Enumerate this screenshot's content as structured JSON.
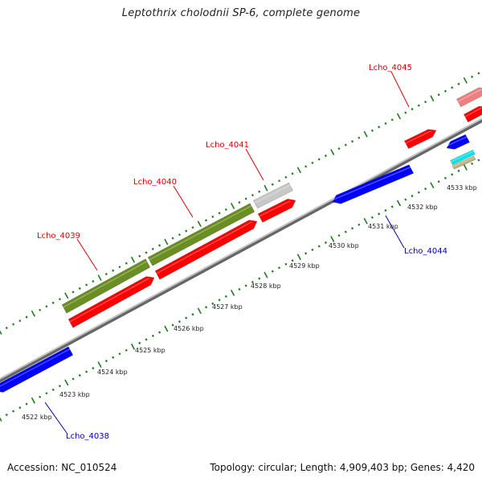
{
  "title": "Leptothrix cholodnii SP-6, complete genome",
  "footer": {
    "accession": "Accession: NC_010524",
    "summary": "Topology: circular; Length: 4,909,403 bp; Genes: 4,420"
  },
  "colors": {
    "forward_cds": "#ff0000",
    "reverse_cds": "#0000ff",
    "rna": "#6b8e23",
    "pseudo": "#c8c8c8",
    "ticks": "#1f7a1f",
    "label_forward": "#dd0000",
    "label_reverse": "#0000aa",
    "backbone": "#888888"
  },
  "scale_labels": [
    "4522 kbp",
    "4523 kbp",
    "4524 kbp",
    "4525 kbp",
    "4526 kbp",
    "4527 kbp",
    "4528 kbp",
    "4529 kbp",
    "4530 kbp",
    "4531 kbp",
    "4532 kbp",
    "4533 kbp"
  ],
  "gene_labels": {
    "lcho_4038": "Lcho_4038",
    "lcho_4039": "Lcho_4039",
    "lcho_4040": "Lcho_4040",
    "lcho_4041": "Lcho_4041",
    "lcho_4044": "Lcho_4044",
    "lcho_4045": "Lcho_4045"
  }
}
